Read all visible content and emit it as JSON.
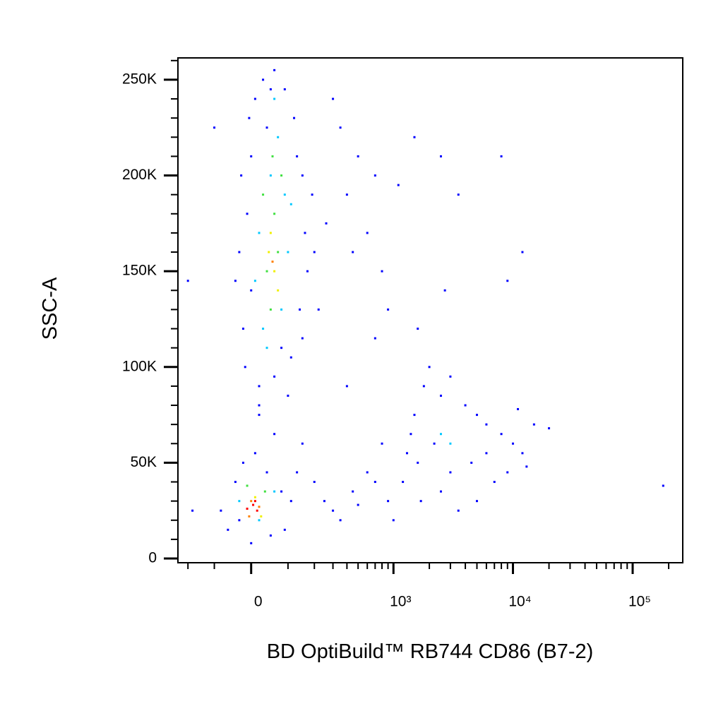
{
  "chart_data": {
    "type": "scatter",
    "x_label": "BD OptiBuild™ RB744 CD86 (B7-2)",
    "y_label": "SSC-A",
    "xscale": "biexponential",
    "xlim": [
      -250,
      262144
    ],
    "ylim": [
      -2200,
      261400
    ],
    "xticks": [
      {
        "value": 0,
        "label": "0"
      },
      {
        "value": 1000,
        "label": "10³"
      },
      {
        "value": 10000,
        "label": "10⁴"
      },
      {
        "value": 100000,
        "label": "10⁵"
      }
    ],
    "xminorticks": [
      -200,
      -100,
      100,
      200,
      300,
      400,
      500,
      600,
      700,
      800,
      900,
      2000,
      3000,
      4000,
      5000,
      6000,
      7000,
      8000,
      9000,
      20000,
      30000,
      40000,
      50000,
      60000,
      70000,
      80000,
      90000,
      200000
    ],
    "yticks": [
      0,
      {
        "value": 50000,
        "label": "50K"
      },
      {
        "value": 100000,
        "label": "100K"
      },
      {
        "value": 150000,
        "label": "150K"
      },
      {
        "value": 200000,
        "label": "200K"
      },
      {
        "value": 250000,
        "label": "250K"
      }
    ],
    "yminorticks": [
      10000,
      20000,
      30000,
      40000,
      60000,
      70000,
      80000,
      90000,
      110000,
      120000,
      130000,
      140000,
      160000,
      170000,
      180000,
      190000,
      210000,
      220000,
      230000,
      240000,
      260000
    ],
    "series": [
      {
        "color": "#0000ff",
        "x": [
          -20,
          -10,
          -30,
          0,
          10,
          30,
          60,
          90,
          120,
          150,
          160,
          140,
          110,
          60,
          20,
          -15,
          0,
          170,
          130,
          40,
          -25,
          80,
          20,
          100,
          -5,
          190,
          50,
          200,
          -40,
          150,
          300,
          350,
          500,
          700,
          600,
          800,
          400,
          450,
          900,
          1500,
          2500,
          3500,
          12000,
          9000,
          8000,
          1100,
          2700,
          700,
          400,
          1600,
          220,
          260,
          -200,
          -100,
          -80,
          -60,
          -40,
          -20,
          10,
          40,
          80,
          110,
          90,
          50,
          0,
          -30,
          130,
          200,
          250,
          300,
          350,
          450,
          500,
          600,
          700,
          60,
          20,
          150,
          -180,
          1000,
          1200,
          1300,
          1500,
          1800,
          2000,
          2500,
          3000,
          4000,
          5000,
          6000,
          8000,
          10000,
          12000,
          15000,
          20000,
          7000,
          5000,
          3500,
          2500,
          1700,
          1400,
          3000,
          4500,
          9000,
          6000,
          2200,
          1600,
          11000,
          13000,
          180000,
          800,
          900
        ],
        "values": [
          120000,
          180000,
          160000,
          210000,
          240000,
          250000,
          255000,
          245000,
          230000,
          200000,
          170000,
          130000,
          105000,
          95000,
          90000,
          100000,
          140000,
          150000,
          210000,
          225000,
          200000,
          110000,
          80000,
          85000,
          230000,
          190000,
          245000,
          160000,
          145000,
          115000,
          240000,
          225000,
          210000,
          200000,
          170000,
          150000,
          190000,
          160000,
          130000,
          220000,
          210000,
          190000,
          160000,
          145000,
          210000,
          195000,
          140000,
          115000,
          90000,
          120000,
          130000,
          175000,
          145000,
          225000,
          25000,
          15000,
          40000,
          50000,
          55000,
          45000,
          35000,
          30000,
          15000,
          12000,
          8000,
          20000,
          45000,
          40000,
          30000,
          25000,
          20000,
          35000,
          28000,
          45000,
          40000,
          65000,
          75000,
          60000,
          25000,
          20000,
          40000,
          55000,
          75000,
          90000,
          100000,
          85000,
          95000,
          80000,
          75000,
          70000,
          65000,
          60000,
          55000,
          70000,
          68000,
          40000,
          30000,
          25000,
          35000,
          30000,
          65000,
          45000,
          50000,
          45000,
          55000,
          60000,
          50000,
          78000,
          48000,
          38000,
          60000,
          30000
        ]
      },
      {
        "color": "#00c8ff",
        "x": [
          30,
          50,
          70,
          80,
          20,
          100,
          60,
          90,
          40,
          2500,
          3000,
          -30,
          60,
          20,
          110,
          10
        ],
        "values": [
          120000,
          200000,
          220000,
          130000,
          170000,
          160000,
          240000,
          190000,
          110000,
          65000,
          60000,
          30000,
          35000,
          20000,
          185000,
          145000
        ]
      },
      {
        "color": "#40e040",
        "x": [
          40,
          60,
          70,
          50,
          80,
          30,
          55,
          -10,
          35
        ],
        "values": [
          150000,
          180000,
          160000,
          130000,
          200000,
          190000,
          210000,
          38000,
          35000
        ]
      },
      {
        "color": "#f0f000",
        "x": [
          50,
          60,
          70,
          45,
          10,
          25
        ],
        "values": [
          170000,
          150000,
          140000,
          160000,
          32000,
          22000
        ]
      },
      {
        "color": "#ff8000",
        "x": [
          55,
          0,
          20,
          -5
        ],
        "values": [
          155000,
          30000,
          27000,
          22000
        ]
      },
      {
        "color": "#ff0000",
        "x": [
          5,
          15,
          -10,
          10
        ],
        "values": [
          28000,
          25000,
          26000,
          30000
        ]
      }
    ]
  }
}
